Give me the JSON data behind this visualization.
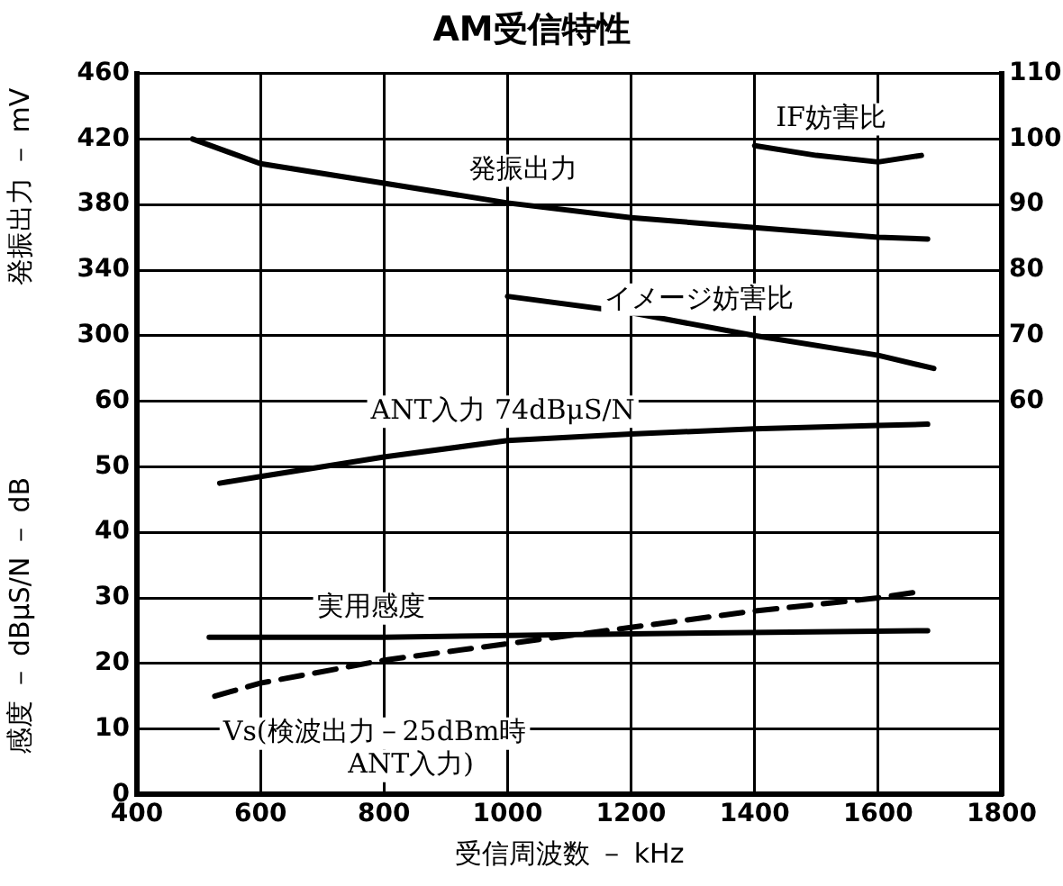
{
  "chart_data": {
    "type": "line",
    "title": "AM受信特性",
    "xlabel": "受信周波数 － kHz",
    "ylabel": "感度 － dBμS/N － dB",
    "y3label": "発振出力 － mV",
    "xlim": [
      400,
      1800
    ],
    "xticks": [
      400,
      600,
      800,
      1000,
      1200,
      1400,
      1600,
      1800
    ],
    "ylim": [
      0,
      110
    ],
    "yticks": [
      0,
      10,
      20,
      30,
      40,
      50,
      60
    ],
    "y2lim": [
      0,
      110
    ],
    "y2ticks": [
      60,
      70,
      80,
      90,
      100,
      110
    ],
    "y3lim": [
      20,
      460
    ],
    "y3ticks": [
      300,
      340,
      380,
      420,
      460
    ],
    "grid": true,
    "legend": false,
    "marker": "none",
    "series": [
      {
        "name": "IF妨害比",
        "color": "#000000",
        "axis": "y2",
        "x": [
          1400,
          1500,
          1600,
          1670
        ],
        "values": [
          99,
          97.5,
          96.5,
          97.5
        ]
      },
      {
        "name": "発振出力",
        "color": "#000000",
        "axis": "y3",
        "x": [
          490,
          600,
          800,
          1000,
          1200,
          1400,
          1600,
          1680
        ],
        "values": [
          420,
          405,
          393,
          381,
          372,
          366,
          360,
          359
        ]
      },
      {
        "name": "イメージ妨害比",
        "color": "#000000",
        "axis": "y2",
        "x": [
          1000,
          1200,
          1400,
          1600,
          1690
        ],
        "values": [
          76,
          73.5,
          70,
          67,
          65
        ]
      },
      {
        "name": "ANT入力 74dBμS/N",
        "color": "#000000",
        "axis": "y",
        "x": [
          534,
          600,
          800,
          1000,
          1200,
          1400,
          1600,
          1680
        ],
        "values": [
          47.5,
          48.5,
          51.5,
          54,
          55,
          55.8,
          56.3,
          56.5
        ]
      },
      {
        "name": "実用感度",
        "color": "#000000",
        "axis": "y",
        "x": [
          517,
          800,
          1200,
          1680
        ],
        "values": [
          24,
          24,
          24.5,
          25
        ]
      },
      {
        "name": "Vs(検波出力－25dBm時 ANT入力)",
        "color": "#000000",
        "axis": "y",
        "line_style": "dashed",
        "x": [
          526,
          600,
          800,
          1000,
          1200,
          1400,
          1600,
          1670
        ],
        "values": [
          15,
          17,
          20.5,
          23,
          25.5,
          28,
          30,
          31
        ]
      }
    ]
  }
}
